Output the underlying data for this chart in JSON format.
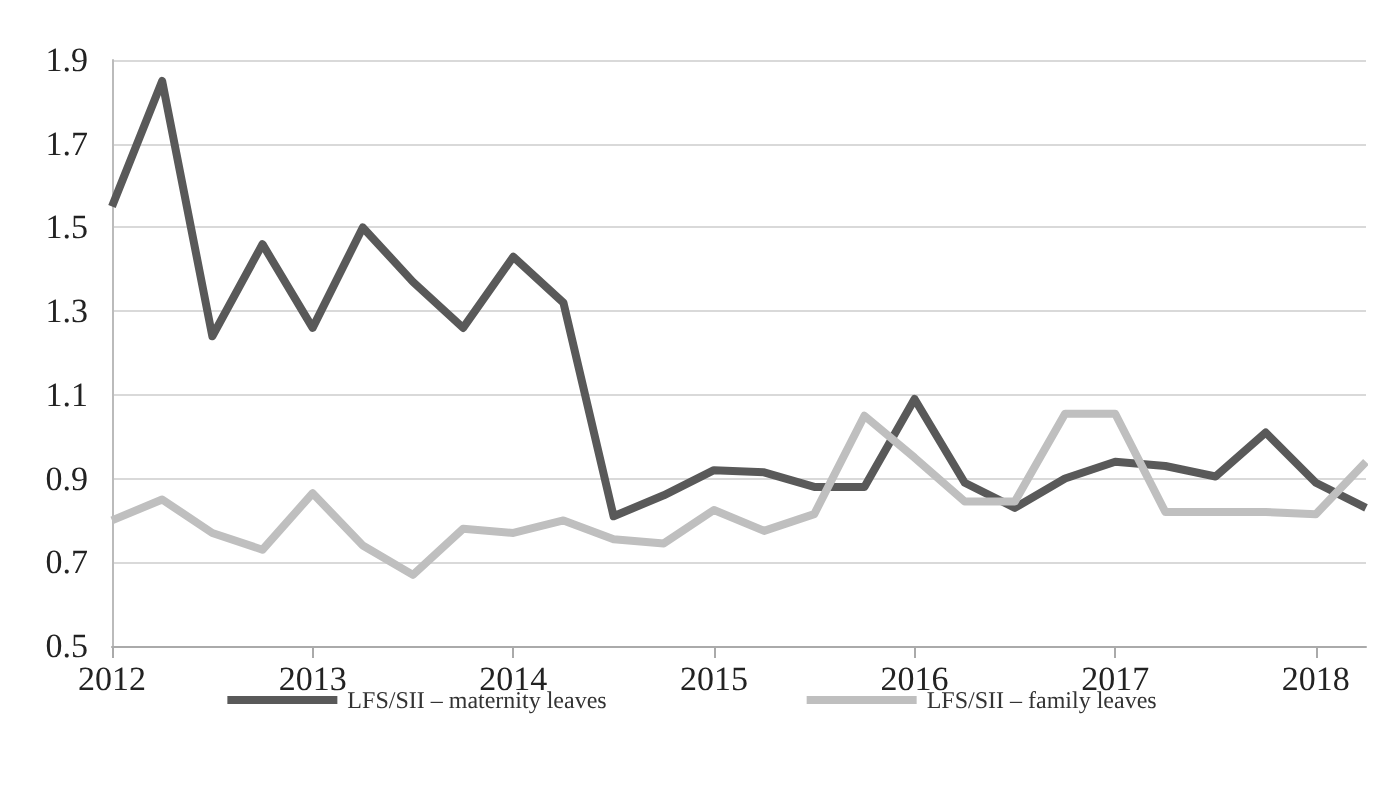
{
  "chart_data": {
    "type": "line",
    "x": [
      2012,
      2012.25,
      2012.5,
      2012.75,
      2013,
      2013.25,
      2013.5,
      2013.75,
      2014,
      2014.25,
      2014.5,
      2014.75,
      2015,
      2015.25,
      2015.5,
      2015.75,
      2016,
      2016.25,
      2016.5,
      2016.75,
      2017,
      2017.25,
      2017.5,
      2017.75,
      2018,
      2018.25
    ],
    "series": [
      {
        "name": "LFS/SII – maternity leaves",
        "color": "#595959",
        "values": [
          1.55,
          1.85,
          1.24,
          1.46,
          1.26,
          1.5,
          1.37,
          1.26,
          1.43,
          1.32,
          0.81,
          0.86,
          0.92,
          0.915,
          0.88,
          0.88,
          1.09,
          0.89,
          0.83,
          0.9,
          0.94,
          0.93,
          0.905,
          1.01,
          0.89,
          0.83
        ]
      },
      {
        "name": "LFS/SII – family leaves",
        "color": "#bfbfbf",
        "values": [
          0.8,
          0.85,
          0.77,
          0.73,
          0.865,
          0.74,
          0.67,
          0.78,
          0.77,
          0.8,
          0.755,
          0.745,
          0.825,
          0.775,
          0.815,
          1.05,
          0.95,
          0.845,
          0.845,
          1.055,
          1.055,
          0.82,
          0.82,
          0.82,
          0.815,
          0.94
        ]
      }
    ],
    "xlim": [
      2012,
      2018.25
    ],
    "xticks": [
      2012,
      2013,
      2014,
      2015,
      2016,
      2017,
      2018
    ],
    "ylim": [
      0.5,
      1.9
    ],
    "yticks": [
      0.5,
      0.7,
      0.9,
      1.1,
      1.3,
      1.5,
      1.7,
      1.9
    ],
    "grid": "y",
    "legend": "bottom",
    "marker": "none",
    "line_style": "solid"
  }
}
